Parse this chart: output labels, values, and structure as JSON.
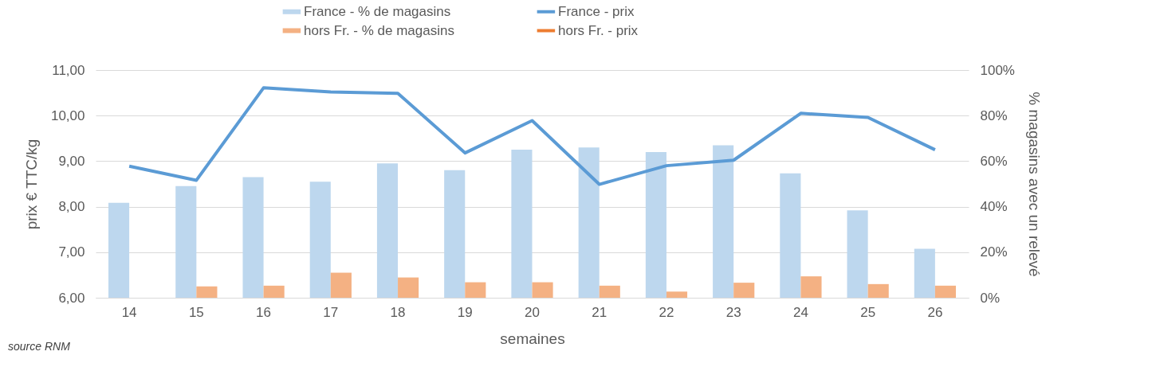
{
  "chart_data": {
    "type": "bar",
    "xlabel": "semaines",
    "ylabel": "prix € TTC/kg",
    "y2label": "% magasins avec un relevé",
    "categories": [
      "14",
      "15",
      "16",
      "17",
      "18",
      "19",
      "20",
      "21",
      "22",
      "23",
      "24",
      "25",
      "26"
    ],
    "series": [
      {
        "name": "France - % de magasins",
        "axis": "y2",
        "color": "#bdd7ee",
        "values": [
          41.7,
          49,
          53,
          51,
          59,
          56,
          65,
          66,
          64,
          67,
          54.6,
          38.4,
          21.5
        ]
      },
      {
        "name": "hors Fr.  - % de magasins",
        "axis": "y2",
        "color": "#f4b183",
        "values": [
          null,
          5,
          5.3,
          11,
          8.9,
          6.8,
          6.8,
          5.3,
          2.7,
          6.6,
          9.4,
          6,
          5.3
        ]
      },
      {
        "name": "France - prix",
        "type": "line",
        "color": "#5b9bd5",
        "values": [
          8.89,
          8.58,
          10.61,
          10.52,
          10.49,
          9.18,
          9.89,
          8.49,
          8.9,
          9.02,
          10.05,
          9.96,
          9.25
        ]
      },
      {
        "name": "hors Fr.  - prix",
        "type": "line",
        "color": "#ed7d31",
        "values": [
          null,
          null,
          null,
          null,
          null,
          null,
          null,
          null,
          null,
          null,
          null,
          null,
          null
        ]
      }
    ],
    "ylim": [
      6,
      11
    ],
    "yticks": [
      {
        "value": 6,
        "label": "6,00"
      },
      {
        "value": 7,
        "label": "7,00"
      },
      {
        "value": 8,
        "label": "8,00"
      },
      {
        "value": 9,
        "label": "9,00"
      },
      {
        "value": 10,
        "label": "10,00"
      },
      {
        "value": 11,
        "label": "11,00"
      }
    ],
    "y2lim": [
      0,
      100
    ],
    "y2ticks": [
      {
        "value": 0,
        "label": "0%"
      },
      {
        "value": 20,
        "label": "20%"
      },
      {
        "value": 40,
        "label": "40%"
      },
      {
        "value": 60,
        "label": "60%"
      },
      {
        "value": 80,
        "label": "80%"
      },
      {
        "value": 100,
        "label": "100%"
      }
    ],
    "grid": "y",
    "legend": "top",
    "marker": "none",
    "line_style": "solid",
    "annotations": [
      "source RNM"
    ]
  }
}
